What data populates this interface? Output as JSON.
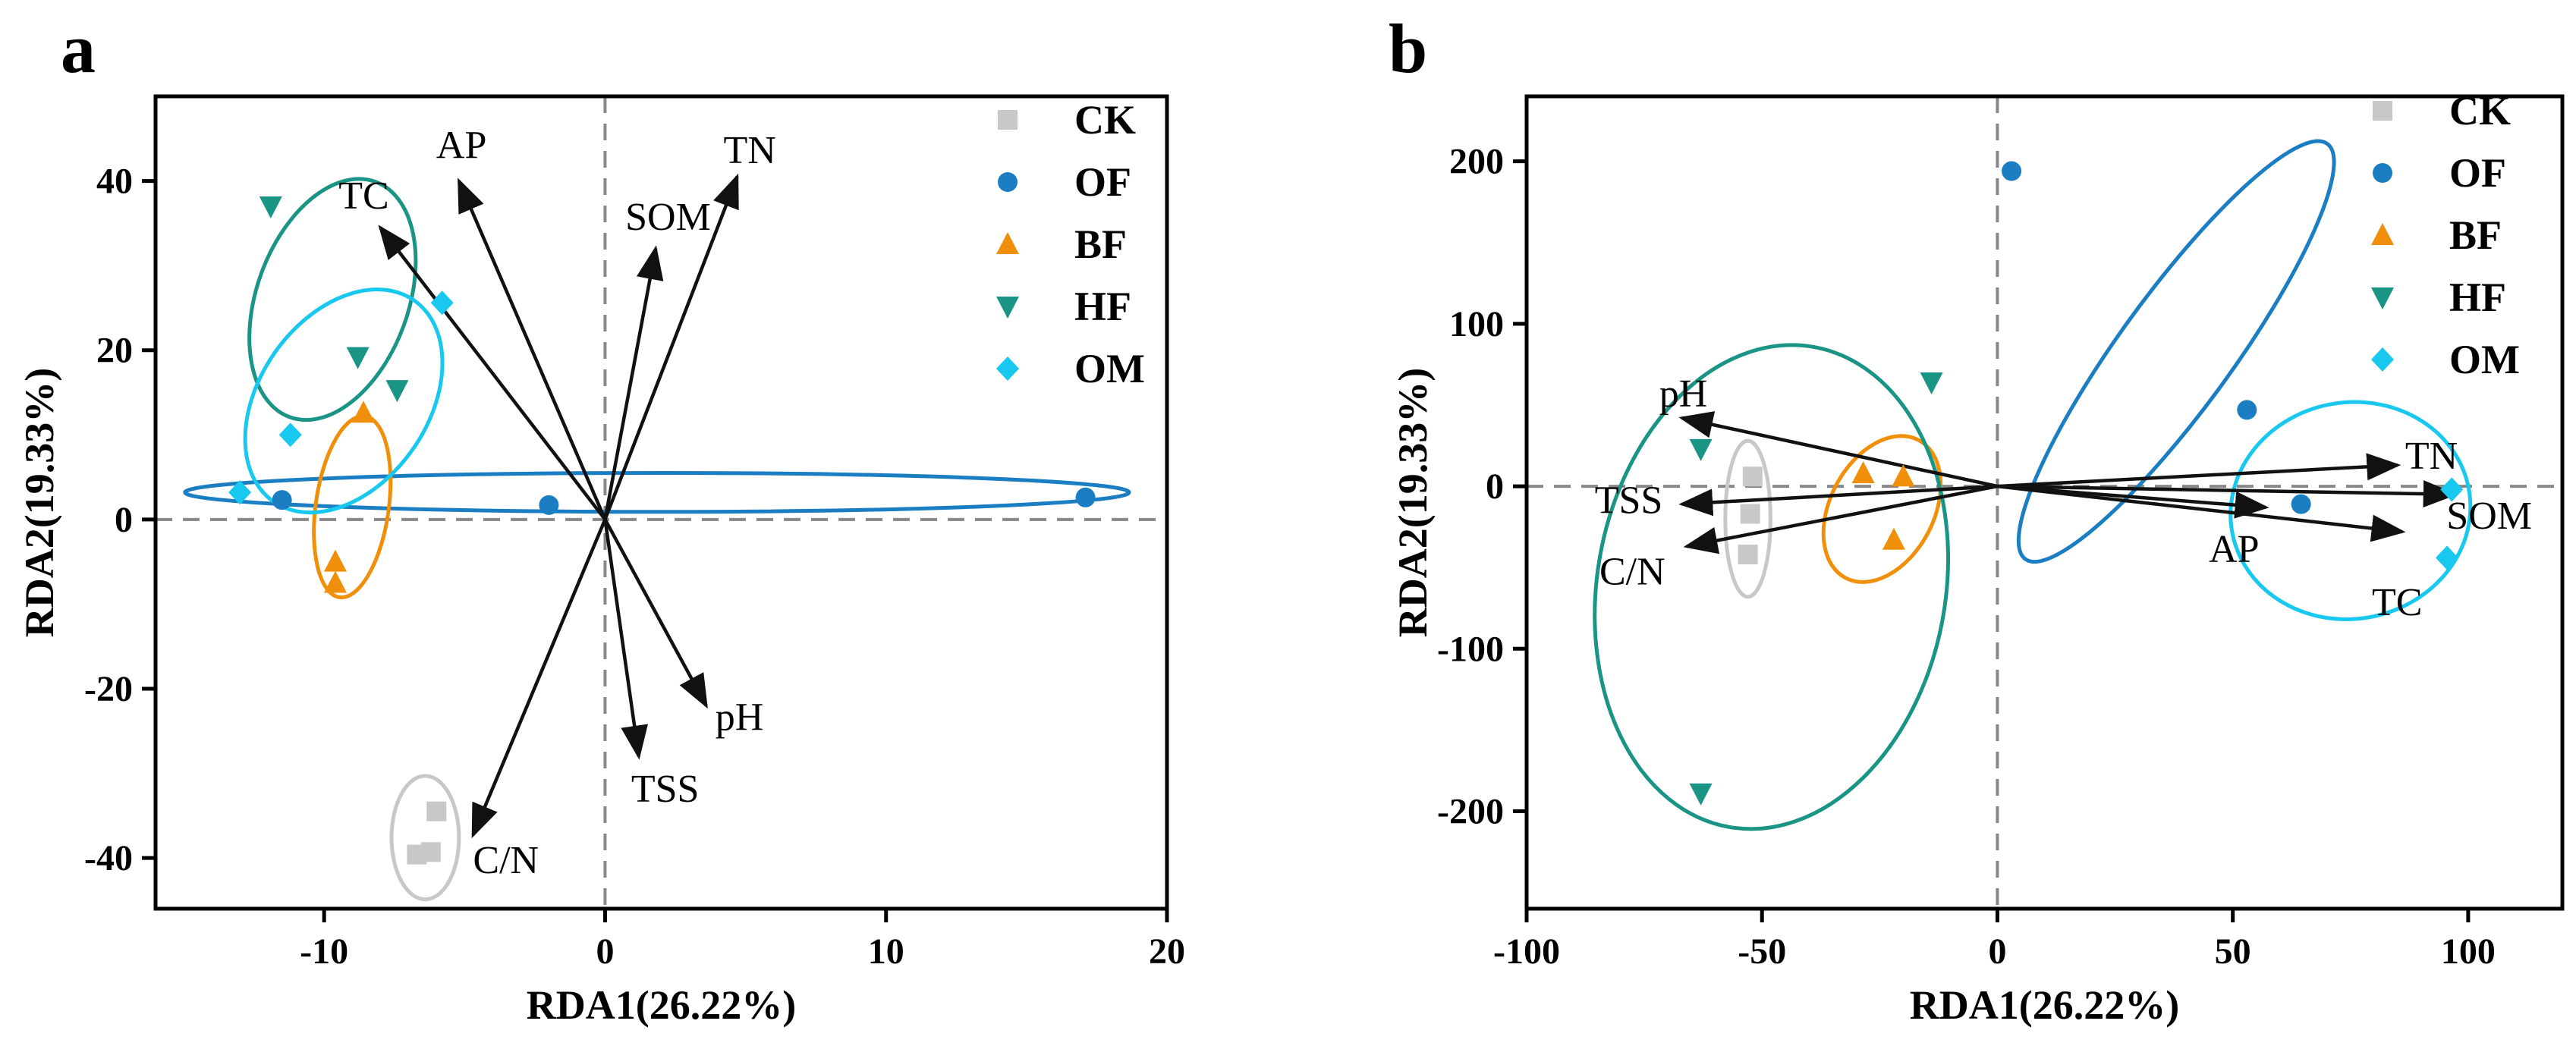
{
  "chart_data": [
    {
      "type": "scatter",
      "panel_label": "a",
      "xlabel": "RDA1(26.22%)",
      "ylabel": "RDA2(19.33%)",
      "xlim": [
        -16,
        20
      ],
      "ylim": [
        -46,
        50
      ],
      "xticks": [
        -10,
        0,
        10,
        20
      ],
      "yticks": [
        -40,
        -20,
        0,
        20,
        40
      ],
      "reference_lines": {
        "x": 0,
        "y": 0,
        "style": "dashed"
      },
      "legend": {
        "position": "top-right",
        "entries": [
          "CK",
          "OF",
          "BF",
          "HF",
          "OM"
        ]
      },
      "series": [
        {
          "name": "CK",
          "marker": "square",
          "color": "#c8c8c8",
          "points": [
            [
              -6.0,
              -34.5
            ],
            [
              -6.2,
              -39.3
            ],
            [
              -6.7,
              -39.6
            ]
          ],
          "ellipse": {
            "cx": -6.4,
            "cy": -37.6,
            "rx": 1.2,
            "ry": 7.3,
            "angle": 0
          }
        },
        {
          "name": "OF",
          "marker": "circle",
          "color": "#1b7ec2",
          "points": [
            [
              -11.5,
              2.3
            ],
            [
              -2.0,
              1.7
            ],
            [
              17.1,
              2.6
            ]
          ],
          "ellipse": {
            "cx": 1.85,
            "cy": 3.2,
            "rx": 16.8,
            "ry": 2.3,
            "angle": 0
          }
        },
        {
          "name": "BF",
          "marker": "triangle-up",
          "color": "#f0900a",
          "points": [
            [
              -8.6,
              12.6
            ],
            [
              -9.6,
              -5.0
            ],
            [
              -9.6,
              -7.5
            ]
          ],
          "ellipse": {
            "cx": -9.0,
            "cy": 1.5,
            "rx": 1.3,
            "ry": 10.8,
            "angle": 8
          }
        },
        {
          "name": "HF",
          "marker": "triangle-down",
          "color": "#1a9485",
          "points": [
            [
              -11.9,
              37.0
            ],
            [
              -8.8,
              19.2
            ],
            [
              -7.4,
              15.3
            ]
          ],
          "ellipse": {
            "cx": -9.7,
            "cy": 26.0,
            "rx": 2.7,
            "ry": 14.8,
            "angle": 20
          }
        },
        {
          "name": "OM",
          "marker": "diamond",
          "color": "#18c8ee",
          "points": [
            [
              -13.0,
              3.2
            ],
            [
              -11.2,
              10.0
            ],
            [
              -5.8,
              25.6
            ]
          ],
          "ellipse": {
            "cx": -9.3,
            "cy": 14.0,
            "rx": 3.0,
            "ry": 14.5,
            "angle": 35
          }
        }
      ],
      "vectors": [
        {
          "label": "AP",
          "x": -5.2,
          "y": 40.0
        },
        {
          "label": "TC",
          "x": -8.0,
          "y": 34.5
        },
        {
          "label": "SOM",
          "x": 1.8,
          "y": 32.0
        },
        {
          "label": "TN",
          "x": 4.7,
          "y": 40.5
        },
        {
          "label": "pH",
          "x": 3.6,
          "y": -22.0
        },
        {
          "label": "TSS",
          "x": 1.2,
          "y": -28.0
        },
        {
          "label": "C/N",
          "x": -4.7,
          "y": -37.3
        }
      ]
    },
    {
      "type": "scatter",
      "panel_label": "b",
      "xlabel": "RDA1(26.22%)",
      "ylabel": "RDA2(19.33%)",
      "xlim": [
        -100,
        120
      ],
      "ylim": [
        -260,
        240
      ],
      "xticks": [
        -100,
        -50,
        0,
        50,
        100
      ],
      "yticks": [
        -200,
        -100,
        0,
        100,
        200
      ],
      "reference_lines": {
        "x": 0,
        "y": 0,
        "style": "dashed"
      },
      "legend": {
        "position": "top-right",
        "entries": [
          "CK",
          "OF",
          "BF",
          "HF",
          "OM"
        ]
      },
      "series": [
        {
          "name": "CK",
          "marker": "square",
          "color": "#c8c8c8",
          "points": [
            [
              -52.0,
              6.0
            ],
            [
              -52.5,
              -17.0
            ],
            [
              -53.0,
              -42.0
            ]
          ],
          "ellipse": {
            "cx": -53.0,
            "cy": -20.0,
            "rx": 4.8,
            "ry": 48.0,
            "angle": 0
          }
        },
        {
          "name": "OF",
          "marker": "circle",
          "color": "#1b7ec2",
          "points": [
            [
              3.0,
              194.0
            ],
            [
              53.0,
              47.0
            ],
            [
              64.5,
              -11.0
            ]
          ],
          "ellipse": {
            "cx": 38.0,
            "cy": 83.0,
            "rx": 12.0,
            "ry": 158.0,
            "angle": 36
          }
        },
        {
          "name": "BF",
          "marker": "triangle-up",
          "color": "#f0900a",
          "points": [
            [
              -28.5,
              8.0
            ],
            [
              -20.0,
              6.0
            ],
            [
              -22.0,
              -33.0
            ]
          ],
          "ellipse": {
            "cx": -24.5,
            "cy": -14.0,
            "rx": 11.0,
            "ry": 48.0,
            "angle": 28
          }
        },
        {
          "name": "HF",
          "marker": "triangle-down",
          "color": "#1a9485",
          "points": [
            [
              -14.0,
              64.0
            ],
            [
              -63.0,
              23.0
            ],
            [
              -63.0,
              -189.0
            ]
          ],
          "ellipse": {
            "cx": -48.0,
            "cy": -62.0,
            "rx": 37.0,
            "ry": 150.0,
            "angle": 10
          }
        },
        {
          "name": "OM",
          "marker": "diamond",
          "color": "#18c8ee",
          "points": [
            [
              95.5,
              -44.0
            ],
            [
              96.5,
              -2.0
            ]
          ],
          "ellipse": {
            "cx": 75.0,
            "cy": -15.0,
            "rx": 23.0,
            "ry": 74.0,
            "angle": 80
          }
        }
      ],
      "vectors": [
        {
          "label": "pH",
          "x": -67.0,
          "y": 42.0
        },
        {
          "label": "TSS",
          "x": -67.0,
          "y": -11.0
        },
        {
          "label": "C/N",
          "x": -66.0,
          "y": -37.0
        },
        {
          "label": "TN",
          "x": 85.0,
          "y": 13.0
        },
        {
          "label": "SOM",
          "x": 97.0,
          "y": -5.0
        },
        {
          "label": "AP",
          "x": 57.0,
          "y": -13.0
        },
        {
          "label": "TC",
          "x": 86.0,
          "y": -28.0
        }
      ]
    }
  ]
}
